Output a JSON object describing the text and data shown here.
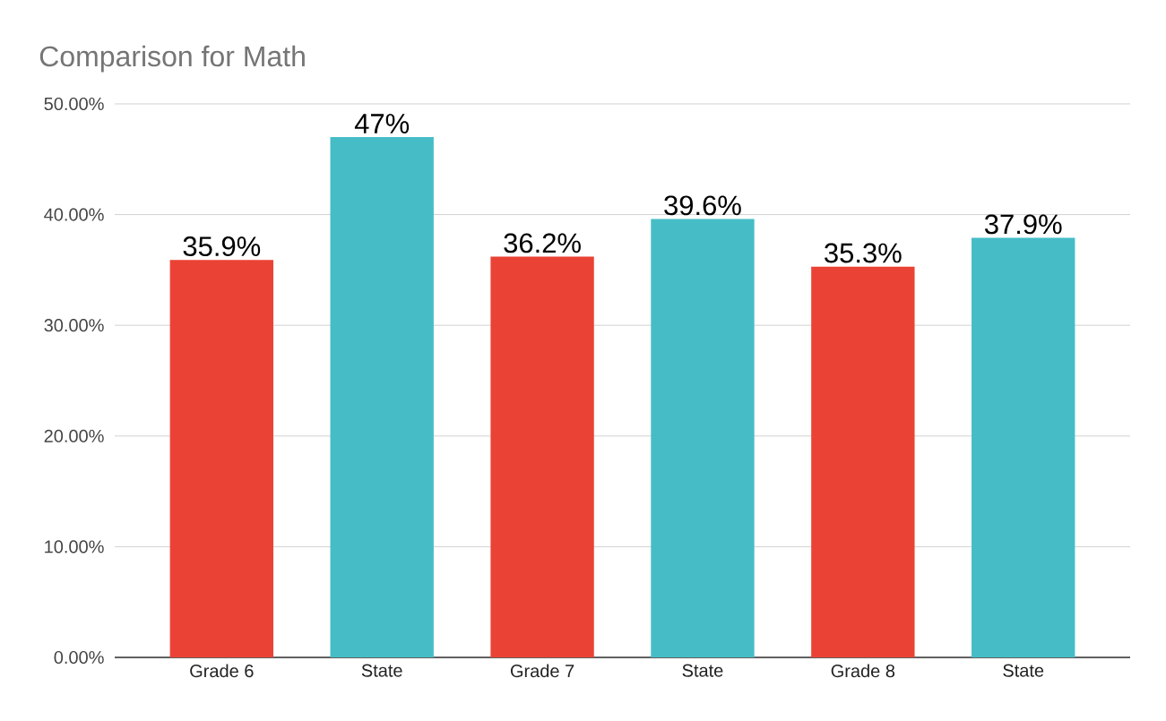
{
  "chart_data": {
    "type": "bar",
    "title": "Comparison for Math",
    "categories": [
      "Grade 6",
      "State",
      "Grade 7",
      "State",
      "Grade 8",
      "State"
    ],
    "values": [
      35.9,
      47,
      36.2,
      39.6,
      35.3,
      37.9
    ],
    "colors": [
      "#ea4335",
      "#46bdc6",
      "#ea4335",
      "#46bdc6",
      "#ea4335",
      "#46bdc6"
    ],
    "value_labels": [
      "35.9%",
      "47%",
      "36.2%",
      "39.6%",
      "35.3%",
      "37.9%"
    ],
    "ylim": [
      0,
      50
    ],
    "yticks": [
      {
        "value": 0,
        "label": "0.00%"
      },
      {
        "value": 10,
        "label": "10.00%"
      },
      {
        "value": 20,
        "label": "20.00%"
      },
      {
        "value": 30,
        "label": "30.00%"
      },
      {
        "value": 40,
        "label": "40.00%"
      },
      {
        "value": 50,
        "label": "50.00%"
      }
    ],
    "grid": "y"
  }
}
